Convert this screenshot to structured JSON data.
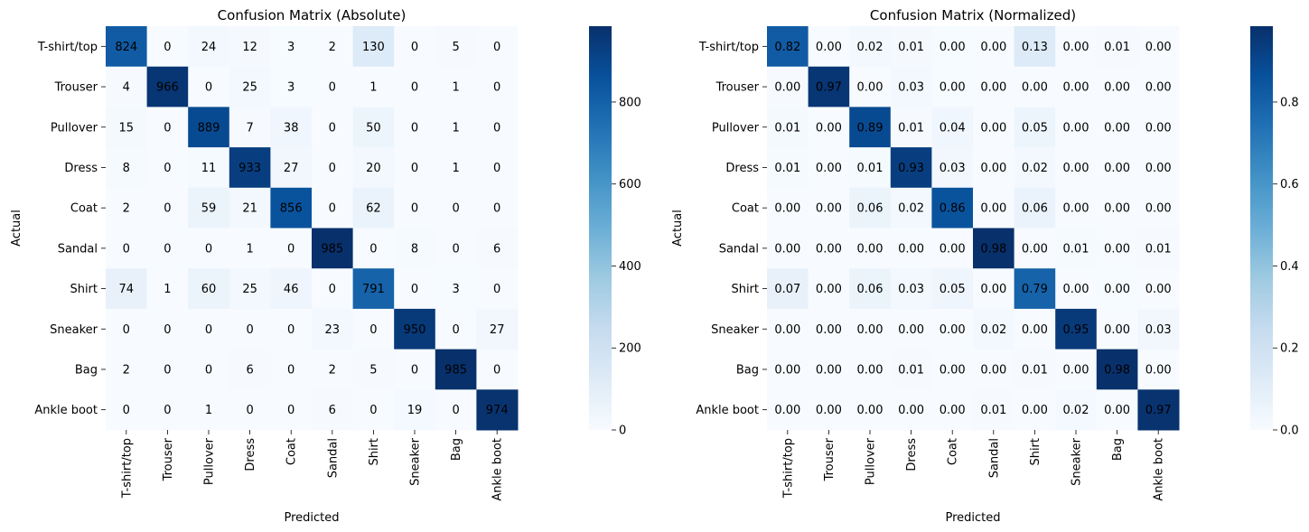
{
  "chart_data": [
    {
      "type": "heatmap",
      "title": "Confusion Matrix (Absolute)",
      "xlabel": "Predicted",
      "ylabel": "Actual",
      "row_labels": [
        "T-shirt/top",
        "Trouser",
        "Pullover",
        "Dress",
        "Coat",
        "Sandal",
        "Shirt",
        "Sneaker",
        "Bag",
        "Ankle boot"
      ],
      "col_labels": [
        "T-shirt/top",
        "Trouser",
        "Pullover",
        "Dress",
        "Coat",
        "Sandal",
        "Shirt",
        "Sneaker",
        "Bag",
        "Ankle boot"
      ],
      "values": [
        [
          824,
          0,
          24,
          12,
          3,
          2,
          130,
          0,
          5,
          0
        ],
        [
          4,
          966,
          0,
          25,
          3,
          0,
          1,
          0,
          1,
          0
        ],
        [
          15,
          0,
          889,
          7,
          38,
          0,
          50,
          0,
          1,
          0
        ],
        [
          8,
          0,
          11,
          933,
          27,
          0,
          20,
          0,
          1,
          0
        ],
        [
          2,
          0,
          59,
          21,
          856,
          0,
          62,
          0,
          0,
          0
        ],
        [
          0,
          0,
          0,
          1,
          0,
          985,
          0,
          8,
          0,
          6
        ],
        [
          74,
          1,
          60,
          25,
          46,
          0,
          791,
          0,
          3,
          0
        ],
        [
          0,
          0,
          0,
          0,
          0,
          23,
          0,
          950,
          0,
          27
        ],
        [
          2,
          0,
          0,
          6,
          0,
          2,
          5,
          0,
          985,
          0
        ],
        [
          0,
          0,
          1,
          0,
          0,
          6,
          0,
          19,
          0,
          974
        ]
      ],
      "value_format": "int",
      "colormap": "Blues",
      "vmin": 0,
      "vmax": 985,
      "colorbar_ticks": [
        "0",
        "200",
        "400",
        "600",
        "800"
      ],
      "colorbar_tick_values": [
        0,
        200,
        400,
        600,
        800
      ]
    },
    {
      "type": "heatmap",
      "title": "Confusion Matrix (Normalized)",
      "xlabel": "Predicted",
      "ylabel": "Actual",
      "row_labels": [
        "T-shirt/top",
        "Trouser",
        "Pullover",
        "Dress",
        "Coat",
        "Sandal",
        "Shirt",
        "Sneaker",
        "Bag",
        "Ankle boot"
      ],
      "col_labels": [
        "T-shirt/top",
        "Trouser",
        "Pullover",
        "Dress",
        "Coat",
        "Sandal",
        "Shirt",
        "Sneaker",
        "Bag",
        "Ankle boot"
      ],
      "values": [
        [
          0.824,
          0.0,
          0.024,
          0.012,
          0.003,
          0.002,
          0.13,
          0.0,
          0.005,
          0.0
        ],
        [
          0.004,
          0.966,
          0.0,
          0.025,
          0.003,
          0.0,
          0.001,
          0.0,
          0.001,
          0.0
        ],
        [
          0.015,
          0.0,
          0.889,
          0.007,
          0.038,
          0.0,
          0.05,
          0.0,
          0.001,
          0.0
        ],
        [
          0.008,
          0.0,
          0.011,
          0.933,
          0.027,
          0.0,
          0.02,
          0.0,
          0.001,
          0.0
        ],
        [
          0.002,
          0.0,
          0.059,
          0.021,
          0.856,
          0.0,
          0.062,
          0.0,
          0.0,
          0.0
        ],
        [
          0.0,
          0.0,
          0.0,
          0.001,
          0.0,
          0.985,
          0.0,
          0.008,
          0.0,
          0.006
        ],
        [
          0.074,
          0.001,
          0.06,
          0.025,
          0.046,
          0.0,
          0.791,
          0.0,
          0.003,
          0.0
        ],
        [
          0.0,
          0.0,
          0.0,
          0.0,
          0.0,
          0.023,
          0.0,
          0.95,
          0.0,
          0.027
        ],
        [
          0.002,
          0.0,
          0.0,
          0.006,
          0.0,
          0.002,
          0.005,
          0.0,
          0.985,
          0.0
        ],
        [
          0.0,
          0.0,
          0.001,
          0.0,
          0.0,
          0.006,
          0.0,
          0.019,
          0.0,
          0.974
        ]
      ],
      "value_format": "fixed2",
      "colormap": "Blues",
      "vmin": 0,
      "vmax": 0.985,
      "colorbar_ticks": [
        "0.0",
        "0.2",
        "0.4",
        "0.6",
        "0.8"
      ],
      "colorbar_tick_values": [
        0.0,
        0.2,
        0.4,
        0.6,
        0.8
      ]
    }
  ]
}
